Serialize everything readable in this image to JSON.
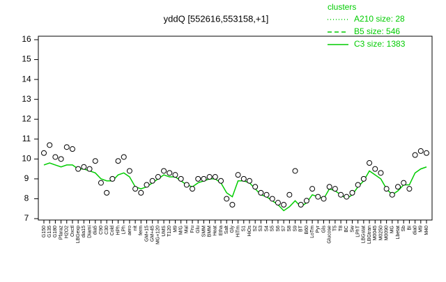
{
  "chart_data": {
    "type": "line",
    "title": "yddQ [552616,553158,+1]",
    "legend_title": "clusters",
    "categories": [
      "G150",
      "G135",
      "G180",
      "Pfaraz",
      "H2O2",
      "Oxctl",
      "LBGexp",
      "dia15",
      "Diami",
      "dia5",
      "C90",
      "C30",
      "Cold",
      "HPh",
      "LPh",
      "aero",
      "nit",
      "ferm",
      "GM+15",
      "GM+45",
      "MG+120",
      "UMS",
      "T120",
      "M9",
      "M/G",
      "Mal",
      "Fru",
      "Glu",
      "SMM",
      "BMM",
      "Heat",
      "Etha",
      "Salt",
      "Gly",
      "HiTm",
      "S1",
      "HiOs",
      "S2",
      "S3",
      "S4",
      "S5",
      "S6",
      "S7",
      "S8",
      "S9",
      "BT",
      "B60",
      "LoTm",
      "Pyr",
      "Gls",
      "Glucose",
      "T5",
      "T8",
      "BC",
      "Sw",
      "LPhT",
      "LBGstat",
      "LBGtran",
      "M0045",
      "M0250",
      "M0090",
      "MG",
      "Lbetat",
      "Sb",
      "BI",
      "dia0",
      "M9",
      "M40"
    ],
    "points": {
      "color": "#000000",
      "values": [
        10.3,
        10.7,
        10.1,
        10.0,
        10.6,
        10.5,
        9.5,
        9.6,
        9.5,
        9.9,
        8.8,
        8.3,
        9.0,
        9.9,
        10.1,
        9.4,
        8.5,
        8.3,
        8.7,
        8.9,
        9.1,
        9.4,
        9.3,
        9.2,
        9.0,
        8.7,
        8.5,
        9.0,
        9.0,
        9.1,
        9.1,
        8.9,
        8.0,
        7.7,
        9.2,
        9.0,
        8.9,
        8.6,
        8.3,
        8.2,
        8.0,
        7.8,
        7.7,
        8.2,
        9.4,
        7.7,
        7.9,
        8.5,
        8.1,
        8.0,
        8.6,
        8.5,
        8.2,
        8.1,
        8.3,
        8.7,
        9.0,
        9.8,
        9.5,
        9.3,
        8.5,
        8.2,
        8.6,
        8.8,
        8.5,
        10.2,
        10.4,
        10.3
      ]
    },
    "series": [
      {
        "name": "A210 size: 28",
        "color": "#00cc00",
        "dash": "dotted"
      },
      {
        "name": "B5 size: 546",
        "color": "#00cc00",
        "dash": "dashed"
      },
      {
        "name": "C3 size: 1383",
        "color": "#00cc00",
        "dash": "solid",
        "values": [
          9.7,
          9.8,
          9.7,
          9.6,
          9.7,
          9.7,
          9.5,
          9.5,
          9.4,
          9.3,
          9.0,
          8.9,
          8.9,
          9.2,
          9.3,
          9.1,
          8.6,
          8.5,
          8.6,
          8.8,
          9.0,
          9.2,
          9.1,
          9.1,
          8.9,
          8.7,
          8.6,
          8.8,
          8.9,
          9.0,
          9.0,
          8.8,
          8.3,
          8.1,
          8.9,
          8.9,
          8.8,
          8.5,
          8.2,
          8.1,
          7.9,
          7.7,
          7.4,
          7.6,
          7.9,
          7.6,
          7.8,
          8.2,
          8.1,
          8.0,
          8.5,
          8.4,
          8.2,
          8.0,
          8.2,
          8.6,
          8.9,
          9.4,
          9.2,
          9.0,
          8.5,
          8.2,
          8.4,
          8.7,
          8.7,
          9.3,
          9.5,
          9.6
        ]
      }
    ],
    "ylim": [
      7,
      16
    ],
    "yticks": [
      7,
      8,
      9,
      10,
      11,
      12,
      13,
      14,
      15,
      16
    ]
  }
}
